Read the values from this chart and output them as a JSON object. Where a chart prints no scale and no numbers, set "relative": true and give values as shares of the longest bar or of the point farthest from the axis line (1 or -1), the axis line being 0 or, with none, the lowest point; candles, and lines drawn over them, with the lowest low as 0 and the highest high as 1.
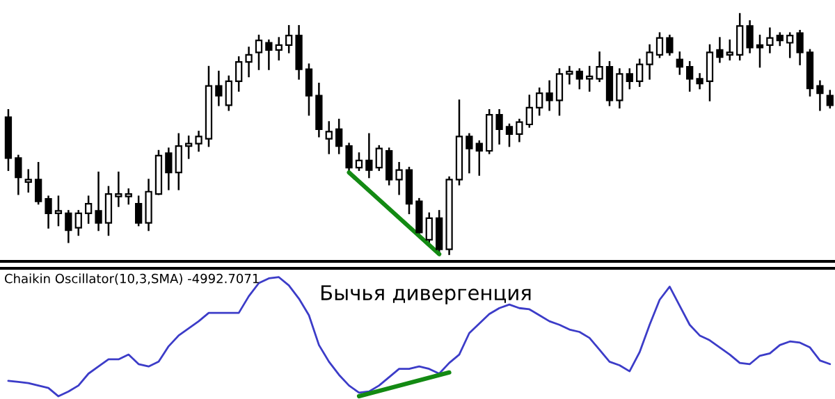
{
  "chart_data": [
    {
      "type": "candlestick",
      "relative": true,
      "categories": [
        null,
        null,
        null,
        null,
        null,
        null,
        null,
        null,
        null,
        null,
        null,
        null,
        null,
        null,
        null,
        null,
        null,
        null,
        null,
        null,
        null,
        null,
        null,
        null,
        null,
        null,
        null,
        null,
        null,
        null,
        null,
        null,
        null,
        null,
        null,
        null,
        null,
        null,
        null,
        null,
        null,
        null,
        null,
        null,
        null,
        null,
        null,
        null,
        null,
        null,
        null,
        null,
        null,
        null,
        null,
        null,
        null,
        null,
        null,
        null,
        null,
        null,
        null,
        null,
        null,
        null,
        null,
        null,
        null,
        null,
        null,
        null,
        null,
        null,
        null,
        null,
        null,
        null,
        null,
        null,
        null,
        null,
        null
      ],
      "ohlc": [
        [
          0.57,
          0.6,
          0.35,
          0.4
        ],
        [
          0.4,
          0.41,
          0.25,
          0.32
        ],
        [
          0.3,
          0.35,
          0.26,
          0.31
        ],
        [
          0.31,
          0.38,
          0.21,
          0.22
        ],
        [
          0.23,
          0.24,
          0.11,
          0.17
        ],
        [
          0.17,
          0.24,
          0.12,
          0.18
        ],
        [
          0.17,
          0.18,
          0.05,
          0.1
        ],
        [
          0.11,
          0.18,
          0.08,
          0.17
        ],
        [
          0.17,
          0.24,
          0.13,
          0.21
        ],
        [
          0.18,
          0.34,
          0.1,
          0.13
        ],
        [
          0.13,
          0.28,
          0.08,
          0.25
        ],
        [
          0.24,
          0.34,
          0.2,
          0.25
        ],
        [
          0.24,
          0.27,
          0.21,
          0.25
        ],
        [
          0.21,
          0.24,
          0.12,
          0.13
        ],
        [
          0.13,
          0.31,
          0.1,
          0.26
        ],
        [
          0.25,
          0.43,
          0.25,
          0.41
        ],
        [
          0.42,
          0.44,
          0.27,
          0.34
        ],
        [
          0.34,
          0.5,
          0.27,
          0.45
        ],
        [
          0.45,
          0.49,
          0.4,
          0.46
        ],
        [
          0.46,
          0.51,
          0.43,
          0.49
        ],
        [
          0.48,
          0.78,
          0.45,
          0.7
        ],
        [
          0.7,
          0.76,
          0.62,
          0.66
        ],
        [
          0.62,
          0.74,
          0.6,
          0.72
        ],
        [
          0.72,
          0.82,
          0.68,
          0.8
        ],
        [
          0.8,
          0.86,
          0.74,
          0.83
        ],
        [
          0.84,
          0.91,
          0.77,
          0.89
        ],
        [
          0.88,
          0.89,
          0.77,
          0.85
        ],
        [
          0.85,
          0.9,
          0.81,
          0.87
        ],
        [
          0.87,
          0.95,
          0.84,
          0.91
        ],
        [
          0.91,
          0.95,
          0.73,
          0.77
        ],
        [
          0.77,
          0.79,
          0.58,
          0.66
        ],
        [
          0.66,
          0.71,
          0.49,
          0.52
        ],
        [
          0.48,
          0.55,
          0.42,
          0.51
        ],
        [
          0.52,
          0.56,
          0.42,
          0.45
        ],
        [
          0.45,
          0.46,
          0.34,
          0.36
        ],
        [
          0.36,
          0.42,
          0.35,
          0.39
        ],
        [
          0.39,
          0.5,
          0.32,
          0.35
        ],
        [
          0.36,
          0.45,
          0.35,
          0.44
        ],
        [
          0.43,
          0.44,
          0.29,
          0.31
        ],
        [
          0.31,
          0.38,
          0.25,
          0.35
        ],
        [
          0.35,
          0.36,
          0.17,
          0.21
        ],
        [
          0.22,
          0.23,
          0.08,
          0.09
        ],
        [
          0.06,
          0.17,
          0.05,
          0.15
        ],
        [
          0.15,
          0.18,
          0.01,
          0.02
        ],
        [
          0.02,
          0.32,
          0.0,
          0.31
        ],
        [
          0.31,
          0.64,
          0.29,
          0.49
        ],
        [
          0.49,
          0.5,
          0.34,
          0.44
        ],
        [
          0.46,
          0.47,
          0.33,
          0.43
        ],
        [
          0.43,
          0.6,
          0.42,
          0.58
        ],
        [
          0.58,
          0.6,
          0.46,
          0.52
        ],
        [
          0.53,
          0.54,
          0.45,
          0.5
        ],
        [
          0.5,
          0.56,
          0.47,
          0.55
        ],
        [
          0.54,
          0.66,
          0.53,
          0.61
        ],
        [
          0.61,
          0.69,
          0.58,
          0.67
        ],
        [
          0.67,
          0.72,
          0.6,
          0.64
        ],
        [
          0.64,
          0.77,
          0.58,
          0.75
        ],
        [
          0.75,
          0.78,
          0.71,
          0.76
        ],
        [
          0.76,
          0.77,
          0.69,
          0.73
        ],
        [
          0.73,
          0.78,
          0.68,
          0.74
        ],
        [
          0.73,
          0.84,
          0.72,
          0.78
        ],
        [
          0.78,
          0.8,
          0.62,
          0.64
        ],
        [
          0.64,
          0.77,
          0.61,
          0.75
        ],
        [
          0.75,
          0.77,
          0.69,
          0.72
        ],
        [
          0.72,
          0.81,
          0.7,
          0.79
        ],
        [
          0.79,
          0.87,
          0.73,
          0.84
        ],
        [
          0.83,
          0.92,
          0.82,
          0.9
        ],
        [
          0.9,
          0.91,
          0.83,
          0.84
        ],
        [
          0.81,
          0.84,
          0.75,
          0.78
        ],
        [
          0.78,
          0.8,
          0.68,
          0.73
        ],
        [
          0.73,
          0.75,
          0.69,
          0.71
        ],
        [
          0.72,
          0.87,
          0.64,
          0.84
        ],
        [
          0.85,
          0.9,
          0.8,
          0.82
        ],
        [
          0.83,
          0.89,
          0.81,
          0.84
        ],
        [
          0.83,
          1.0,
          0.81,
          0.95
        ],
        [
          0.95,
          0.97,
          0.84,
          0.86
        ],
        [
          0.87,
          0.91,
          0.78,
          0.86
        ],
        [
          0.87,
          0.94,
          0.84,
          0.9
        ],
        [
          0.91,
          0.92,
          0.87,
          0.89
        ],
        [
          0.88,
          0.92,
          0.82,
          0.91
        ],
        [
          0.92,
          0.93,
          0.79,
          0.84
        ],
        [
          0.84,
          0.85,
          0.66,
          0.69
        ],
        [
          0.7,
          0.72,
          0.6,
          0.67
        ],
        [
          0.66,
          0.68,
          0.61,
          0.62
        ]
      ],
      "series": [
        {
          "type": "line",
          "color": "#138a13",
          "values": [
            null,
            null,
            null,
            null,
            null,
            null,
            null,
            null,
            null,
            null,
            null,
            null,
            null,
            null,
            null,
            null,
            null,
            null,
            null,
            null,
            null,
            null,
            null,
            null,
            null,
            null,
            null,
            null,
            null,
            null,
            null,
            null,
            null,
            null,
            0.34,
            null,
            null,
            null,
            null,
            null,
            null,
            null,
            null,
            0.0,
            null,
            null,
            null,
            null,
            null,
            null,
            null,
            null,
            null,
            null,
            null,
            null,
            null,
            null,
            null,
            null,
            null,
            null,
            null,
            null,
            null,
            null,
            null,
            null,
            null,
            null,
            null,
            null,
            null,
            null,
            null,
            null,
            null,
            null,
            null,
            null,
            null,
            null,
            null
          ]
        }
      ]
    },
    {
      "type": "line",
      "relative": true,
      "title": "Chaikin Oscillator(10,3,SMA) -4992.7071",
      "annotations": [
        "Бычья дивергенция"
      ],
      "categories": [
        null,
        null,
        null,
        null,
        null,
        null,
        null,
        null,
        null,
        null,
        null,
        null,
        null,
        null,
        null,
        null,
        null,
        null,
        null,
        null,
        null,
        null,
        null,
        null,
        null,
        null,
        null,
        null,
        null,
        null,
        null,
        null,
        null,
        null,
        null,
        null,
        null,
        null,
        null,
        null,
        null,
        null,
        null,
        null,
        null,
        null,
        null,
        null,
        null,
        null,
        null,
        null,
        null,
        null,
        null,
        null,
        null,
        null,
        null,
        null,
        null,
        null,
        null,
        null,
        null,
        null,
        null,
        null,
        null,
        null,
        null,
        null,
        null,
        null,
        null,
        null,
        null,
        null,
        null,
        null,
        null,
        null,
        null
      ],
      "series": [
        {
          "color": "#3c3cc8",
          "values": [
            0.13,
            0.12,
            0.11,
            0.09,
            0.07,
            0.0,
            0.04,
            0.09,
            0.19,
            0.25,
            0.31,
            0.31,
            0.35,
            0.27,
            0.25,
            0.29,
            0.42,
            0.51,
            0.57,
            0.63,
            0.7,
            0.7,
            0.7,
            0.7,
            0.84,
            0.95,
            0.99,
            1.0,
            0.93,
            0.82,
            0.68,
            0.43,
            0.29,
            0.18,
            0.09,
            0.03,
            0.04,
            0.09,
            0.16,
            0.23,
            0.23,
            0.25,
            0.23,
            0.19,
            0.28,
            0.35,
            0.53,
            0.61,
            0.69,
            0.74,
            0.77,
            0.74,
            0.73,
            0.68,
            0.63,
            0.6,
            0.56,
            0.54,
            0.49,
            0.39,
            0.29,
            0.26,
            0.21,
            0.37,
            0.6,
            0.81,
            0.92,
            0.76,
            0.6,
            0.51,
            0.47,
            0.41,
            0.35,
            0.28,
            0.27,
            0.34,
            0.36,
            0.43,
            0.46,
            0.45,
            0.41,
            0.3,
            0.27
          ]
        },
        {
          "type": "line",
          "color": "#138a13",
          "values": [
            null,
            null,
            null,
            null,
            null,
            null,
            null,
            null,
            null,
            null,
            null,
            null,
            null,
            null,
            null,
            null,
            null,
            null,
            null,
            null,
            null,
            null,
            null,
            null,
            null,
            null,
            null,
            null,
            null,
            null,
            null,
            null,
            null,
            null,
            null,
            0.0,
            null,
            null,
            null,
            null,
            null,
            null,
            null,
            null,
            0.2,
            null,
            null,
            null,
            null,
            null,
            null,
            null,
            null,
            null,
            null,
            null,
            null,
            null,
            null,
            null,
            null,
            null,
            null,
            null,
            null,
            null,
            null,
            null,
            null,
            null,
            null,
            null,
            null,
            null,
            null,
            null,
            null,
            null,
            null,
            null,
            null,
            null,
            null
          ]
        }
      ]
    }
  ]
}
